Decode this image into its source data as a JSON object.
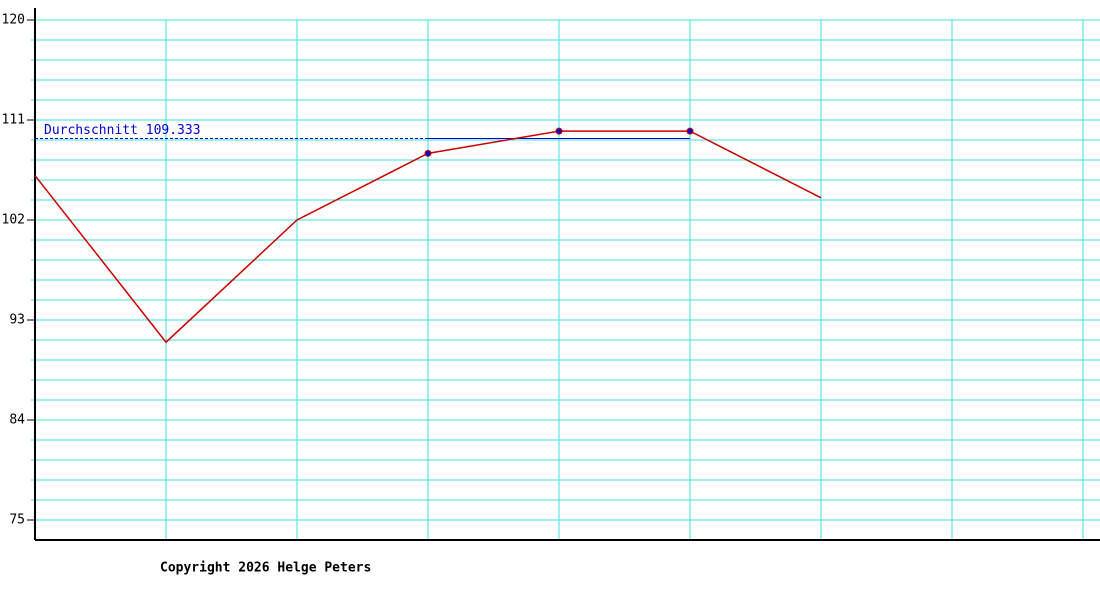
{
  "chart_data": {
    "type": "line",
    "x": [
      0,
      1,
      2,
      3,
      4,
      5,
      6
    ],
    "series": [
      {
        "color": "#cc0000",
        "values": [
          106,
          91,
          102,
          108,
          110,
          110,
          104
        ]
      }
    ],
    "xlim": [
      0,
      8
    ],
    "xticks": [
      1,
      2,
      3,
      4,
      5,
      6,
      7,
      8
    ],
    "ylim": [
      73.2,
      120
    ],
    "yticks": [
      75,
      84,
      93,
      102,
      111,
      120
    ],
    "minor_yticks": [
      120,
      118.2,
      116.4,
      114.6,
      112.8,
      111,
      109.2,
      107.4,
      105.6,
      103.8,
      102,
      100.2,
      98.4,
      96.6,
      94.8,
      93,
      91.2,
      89.4,
      87.6,
      85.8,
      84,
      82.2,
      80.4,
      78.6,
      76.8,
      75
    ],
    "grid": true,
    "grid_color": "#40e0e0",
    "average": {
      "label": "Durchschnitt 109.333",
      "value": 109.333,
      "from_x": 3,
      "to_x": 5,
      "color": "#0000cc"
    },
    "footer": "Copyright 2026 Helge Peters"
  }
}
